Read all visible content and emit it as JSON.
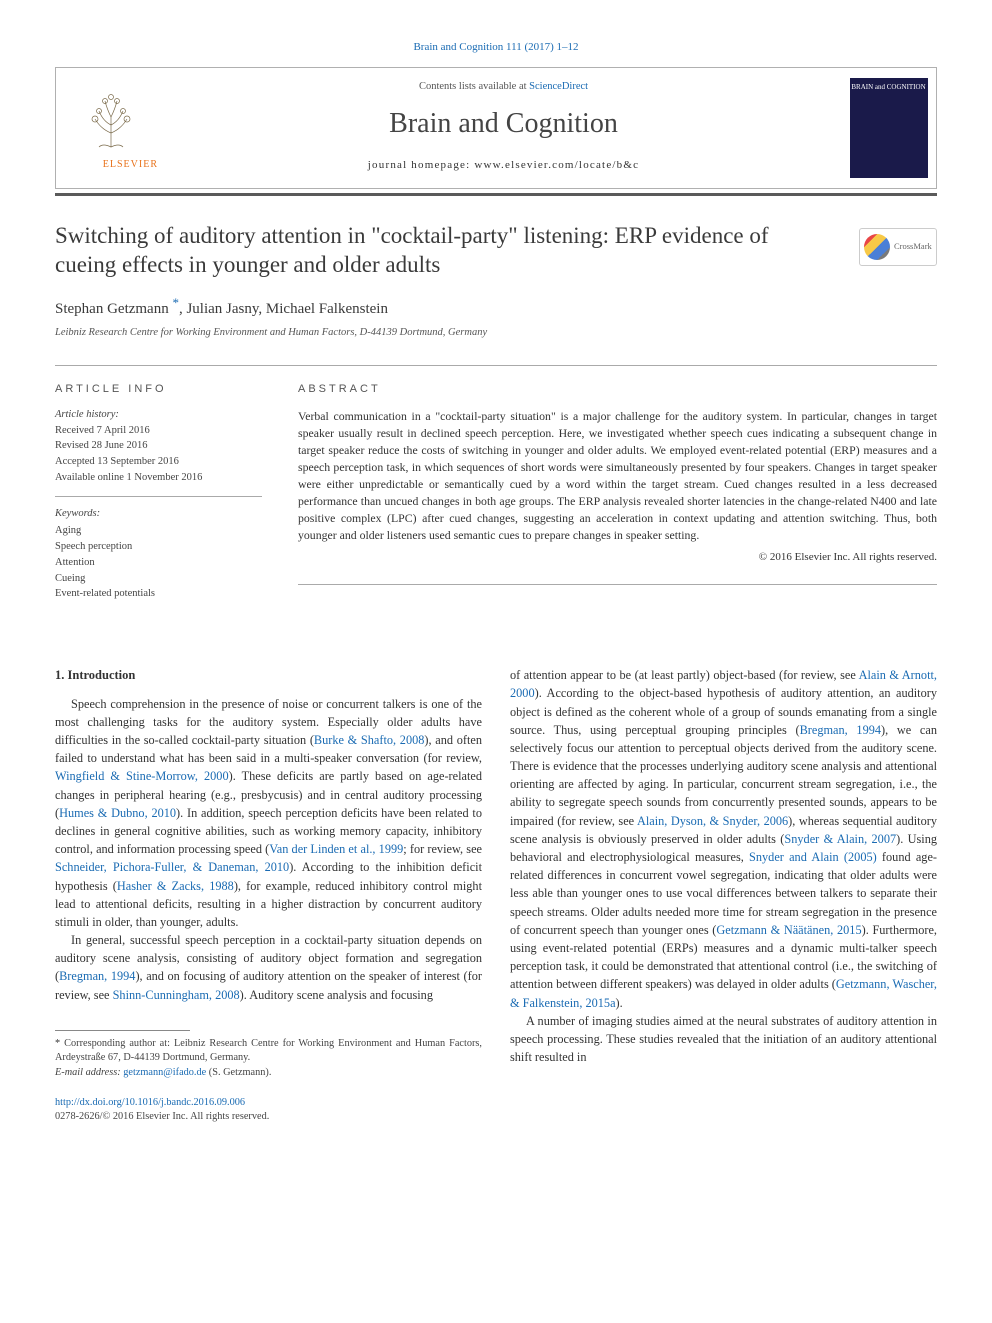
{
  "top_citation": "Brain and Cognition 111 (2017) 1–12",
  "header": {
    "contents_prefix": "Contents lists available at ",
    "contents_link": "ScienceDirect",
    "journal_title": "Brain and Cognition",
    "homepage_prefix": "journal homepage: ",
    "homepage": "www.elsevier.com/locate/b&c",
    "publisher": "ELSEVIER",
    "cover_text": "BRAIN and COGNITION"
  },
  "crossmark": "CrossMark",
  "article": {
    "title": "Switching of auditory attention in \"cocktail-party\" listening: ERP evidence of cueing effects in younger and older adults",
    "authors_html": "Stephan Getzmann <sup class=\"star\">*</sup>, Julian Jasny, Michael Falkenstein",
    "affiliation": "Leibniz Research Centre for Working Environment and Human Factors, D-44139 Dortmund, Germany"
  },
  "info": {
    "heading": "ARTICLE INFO",
    "history_label": "Article history:",
    "history": [
      "Received 7 April 2016",
      "Revised 28 June 2016",
      "Accepted 13 September 2016",
      "Available online 1 November 2016"
    ],
    "keywords_label": "Keywords:",
    "keywords": [
      "Aging",
      "Speech perception",
      "Attention",
      "Cueing",
      "Event-related potentials"
    ]
  },
  "abstract": {
    "heading": "ABSTRACT",
    "text": "Verbal communication in a \"cocktail-party situation\" is a major challenge for the auditory system. In particular, changes in target speaker usually result in declined speech perception. Here, we investigated whether speech cues indicating a subsequent change in target speaker reduce the costs of switching in younger and older adults. We employed event-related potential (ERP) measures and a speech perception task, in which sequences of short words were simultaneously presented by four speakers. Changes in target speaker were either unpredictable or semantically cued by a word within the target stream. Cued changes resulted in a less decreased performance than uncued changes in both age groups. The ERP analysis revealed shorter latencies in the change-related N400 and late positive complex (LPC) after cued changes, suggesting an acceleration in context updating and attention switching. Thus, both younger and older listeners used semantic cues to prepare changes in speaker setting.",
    "copyright": "© 2016 Elsevier Inc. All rights reserved."
  },
  "section1": {
    "heading": "1. Introduction",
    "p1": "Speech comprehension in the presence of noise or concurrent talkers is one of the most challenging tasks for the auditory system. Especially older adults have difficulties in the so-called cocktail-party situation (<span class=\"ref\">Burke & Shafto, 2008</span>), and often failed to understand what has been said in a multi-speaker conversation (for review, <span class=\"ref\">Wingfield & Stine-Morrow, 2000</span>). These deficits are partly based on age-related changes in peripheral hearing (e.g., presbycusis) and in central auditory processing (<span class=\"ref\">Humes & Dubno, 2010</span>). In addition, speech perception deficits have been related to declines in general cognitive abilities, such as working memory capacity, inhibitory control, and information processing speed (<span class=\"ref\">Van der Linden et al., 1999</span>; for review, see <span class=\"ref\">Schneider, Pichora-Fuller, & Daneman, 2010</span>). According to the inhibition deficit hypothesis (<span class=\"ref\">Hasher & Zacks, 1988</span>), for example, reduced inhibitory control might lead to attentional deficits, resulting in a higher distraction by concurrent auditory stimuli in older, than younger, adults.",
    "p2": "In general, successful speech perception in a cocktail-party situation depends on auditory scene analysis, consisting of auditory object formation and segregation (<span class=\"ref\">Bregman, 1994</span>), and on focusing of auditory attention on the speaker of interest (for review, see <span class=\"ref\">Shinn-Cunningham, 2008</span>). Auditory scene analysis and focusing",
    "p3": "of attention appear to be (at least partly) object-based (for review, see <span class=\"ref\">Alain & Arnott, 2000</span>). According to the object-based hypothesis of auditory attention, an auditory object is defined as the coherent whole of a group of sounds emanating from a single source. Thus, using perceptual grouping principles (<span class=\"ref\">Bregman, 1994</span>), we can selectively focus our attention to perceptual objects derived from the auditory scene. There is evidence that the processes underlying auditory scene analysis and attentional orienting are affected by aging. In particular, concurrent stream segregation, i.e., the ability to segregate speech sounds from concurrently presented sounds, appears to be impaired (for review, see <span class=\"ref\">Alain, Dyson, & Snyder, 2006</span>), whereas sequential auditory scene analysis is obviously preserved in older adults (<span class=\"ref\">Snyder & Alain, 2007</span>). Using behavioral and electrophysiological measures, <span class=\"ref\">Snyder and Alain (2005)</span> found age-related differences in concurrent vowel segregation, indicating that older adults were less able than younger ones to use vocal differences between talkers to separate their speech streams. Older adults needed more time for stream segregation in the presence of concurrent speech than younger ones (<span class=\"ref\">Getzmann & Näätänen, 2015</span>). Furthermore, using event-related potential (ERPs) measures and a dynamic multi-talker speech perception task, it could be demonstrated that attentional control (i.e., the switching of attention between different speakers) was delayed in older adults (<span class=\"ref\">Getzmann, Wascher, & Falkenstein, 2015a</span>).",
    "p4": "A number of imaging studies aimed at the neural substrates of auditory attention in speech processing. These studies revealed that the initiation of an auditory attentional shift resulted in"
  },
  "footnote": {
    "corr": "Corresponding author at: Leibniz Research Centre for Working Environment and Human Factors, Ardeystraße 67, D-44139 Dortmund, Germany.",
    "email_label": "E-mail address: ",
    "email": "getzmann@ifado.de",
    "email_suffix": " (S. Getzmann)."
  },
  "footer": {
    "doi": "http://dx.doi.org/10.1016/j.bandc.2016.09.006",
    "issn_line": "0278-2626/© 2016 Elsevier Inc. All rights reserved."
  },
  "colors": {
    "link": "#1a6bb3",
    "text": "#333333",
    "rule": "#aaaaaa",
    "orange": "#e8721b"
  }
}
